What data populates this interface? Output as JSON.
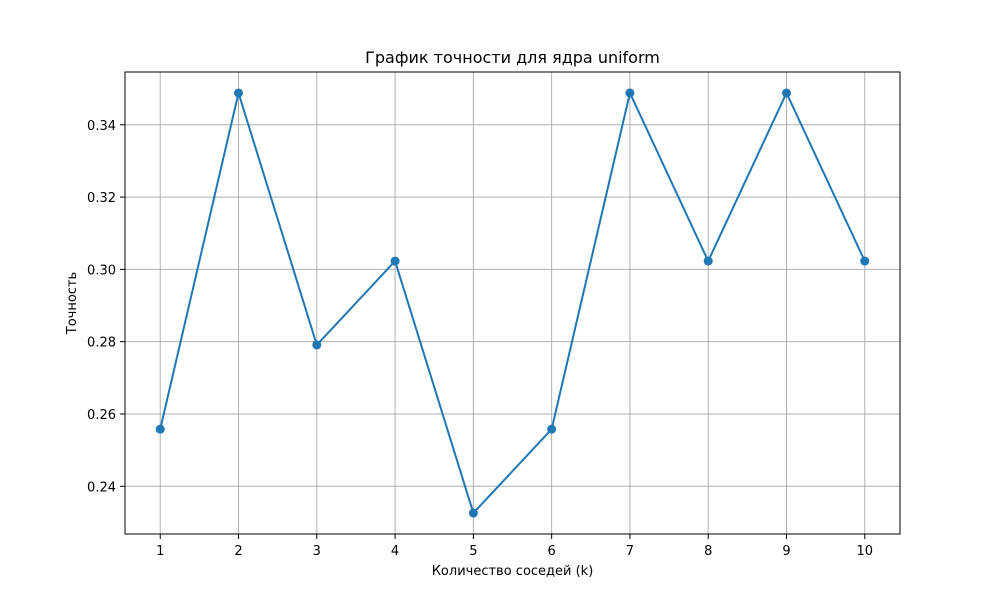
{
  "chart_data": {
    "type": "line",
    "title": "График точности для ядра uniform",
    "xlabel": "Количество соседей (k)",
    "ylabel": "Точность",
    "x": [
      1,
      2,
      3,
      4,
      5,
      6,
      7,
      8,
      9,
      10
    ],
    "x_tick_labels": [
      "1",
      "2",
      "3",
      "4",
      "5",
      "6",
      "7",
      "8",
      "9",
      "10"
    ],
    "series": [
      {
        "values": [
          0.2558,
          0.3488,
          0.2791,
          0.3023,
          0.2326,
          0.2558,
          0.3488,
          0.3023,
          0.3488,
          0.3023
        ],
        "color": "#1f77b4",
        "marker": "circle"
      }
    ],
    "y_ticks": [
      0.24,
      0.26,
      0.28,
      0.3,
      0.32,
      0.34
    ],
    "y_tick_labels": [
      "0.24",
      "0.26",
      "0.28",
      "0.30",
      "0.32",
      "0.34"
    ],
    "xlim": [
      0.55,
      10.45
    ],
    "ylim": [
      0.2268,
      0.3546
    ],
    "grid": true
  }
}
